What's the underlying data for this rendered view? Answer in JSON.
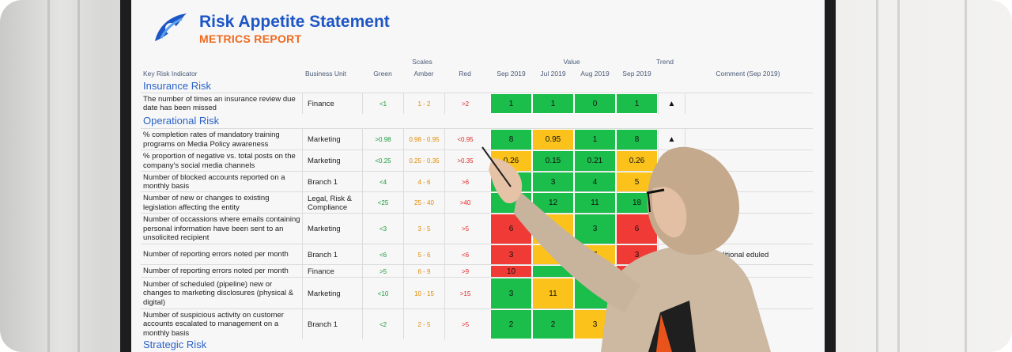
{
  "report": {
    "title": "Risk Appetite Statement",
    "subtitle": "METRICS REPORT"
  },
  "headers": {
    "kri": "Key Risk Indicator",
    "business_unit": "Business Unit",
    "scales": "Scales",
    "green": "Green",
    "amber": "Amber",
    "red": "Red",
    "value": "Value",
    "months": [
      "Sep 2019",
      "Jul 2019",
      "Aug 2019",
      "Sep 2019"
    ],
    "trend": "Trend",
    "comment": "Comment (Sep 2019)"
  },
  "sections": {
    "insurance": "Insurance Risk",
    "operational": "Operational Risk",
    "strategic": "Strategic Risk"
  },
  "colors": {
    "green": "#1bbd4b",
    "amber": "#fbc21b",
    "red": "#f03a35",
    "title": "#1e56c6",
    "subtitle": "#ef6a1e"
  },
  "rows": [
    {
      "kri": "The number of times an insurance review due date has been missed",
      "bu": "Finance",
      "green": "<1",
      "amber": "1 - 2",
      "red": ">2",
      "values": [
        "1",
        "1",
        "0",
        "1"
      ],
      "statuses": [
        "green",
        "green",
        "green",
        "green"
      ],
      "trend": "▲",
      "comment": ""
    },
    {
      "kri": "% completion rates of mandatory training programs on Media Policy awareness",
      "bu": "Marketing",
      "green": ">0.98",
      "amber": "0.98 - 0.95",
      "red": "<0.95",
      "values": [
        "8",
        "0.95",
        "1",
        "8"
      ],
      "statuses": [
        "green",
        "amber",
        "green",
        "green"
      ],
      "trend": "▲",
      "comment": ""
    },
    {
      "kri": "% proportion of negative vs. total posts on the company's social media channels",
      "bu": "Marketing",
      "green": "<0.25",
      "amber": "0.25 - 0.35",
      "red": ">0.35",
      "values": [
        "0.26",
        "0.15",
        "0.21",
        "0.26"
      ],
      "statuses": [
        "amber",
        "green",
        "green",
        "amber"
      ],
      "trend": "",
      "comment": ""
    },
    {
      "kri": "Number of blocked accounts reported on a monthly basis",
      "bu": "Branch 1",
      "green": "<4",
      "amber": "4 - 6",
      "red": ">6",
      "values": [
        "",
        "3",
        "4",
        "5"
      ],
      "statuses": [
        "green",
        "green",
        "green",
        "amber"
      ],
      "trend": "",
      "comment": ""
    },
    {
      "kri": "Number of new or changes to existing legislation affecting the entity",
      "bu": "Legal, Risk & Compliance",
      "green": "<25",
      "amber": "25 - 40",
      "red": ">40",
      "values": [
        "",
        "12",
        "11",
        "18"
      ],
      "statuses": [
        "green",
        "green",
        "green",
        "green"
      ],
      "trend": "",
      "comment": ""
    },
    {
      "kri": "Number of occassions where emails containing personal information have been sent to an unsolicited recipient",
      "bu": "Marketing",
      "green": "<3",
      "amber": "3 - 5",
      "red": ">5",
      "values": [
        "6",
        "",
        "3",
        "6"
      ],
      "statuses": [
        "red",
        "amber",
        "green",
        "red"
      ],
      "trend": "",
      "comment": ""
    },
    {
      "kri": "Number of reporting errors noted per month",
      "bu": "Branch 1",
      "green": "<6",
      "amber": "5 - 6",
      "red": "<6",
      "values": [
        "3",
        "",
        "7",
        "3"
      ],
      "statuses": [
        "red",
        "amber",
        "amber",
        "red"
      ],
      "trend": "",
      "comment": "mber- additional eduled"
    },
    {
      "kri": "Number of reporting errors noted per month",
      "bu": "Finance",
      "green": ">5",
      "amber": "6 - 9",
      "red": ">9",
      "values": [
        "10",
        "",
        "",
        "10"
      ],
      "statuses": [
        "red",
        "green",
        "green",
        "red"
      ],
      "trend": "",
      "comment": ""
    },
    {
      "kri": "Number of scheduled (pipeline) new or changes to marketing disclosures (physical & digital)",
      "bu": "Marketing",
      "green": "<10",
      "amber": "10 - 15",
      "red": ">15",
      "values": [
        "3",
        "11",
        "",
        ""
      ],
      "statuses": [
        "green",
        "amber",
        "green",
        "green"
      ],
      "trend": "",
      "comment": ""
    },
    {
      "kri": "Number of suspicious activity on customer accounts escalated to management on a monthly basis",
      "bu": "Branch 1",
      "green": "<2",
      "amber": "2 - 5",
      "red": ">5",
      "values": [
        "2",
        "2",
        "3",
        "2"
      ],
      "statuses": [
        "green",
        "green",
        "amber",
        "green"
      ],
      "trend": "",
      "comment": ""
    }
  ]
}
